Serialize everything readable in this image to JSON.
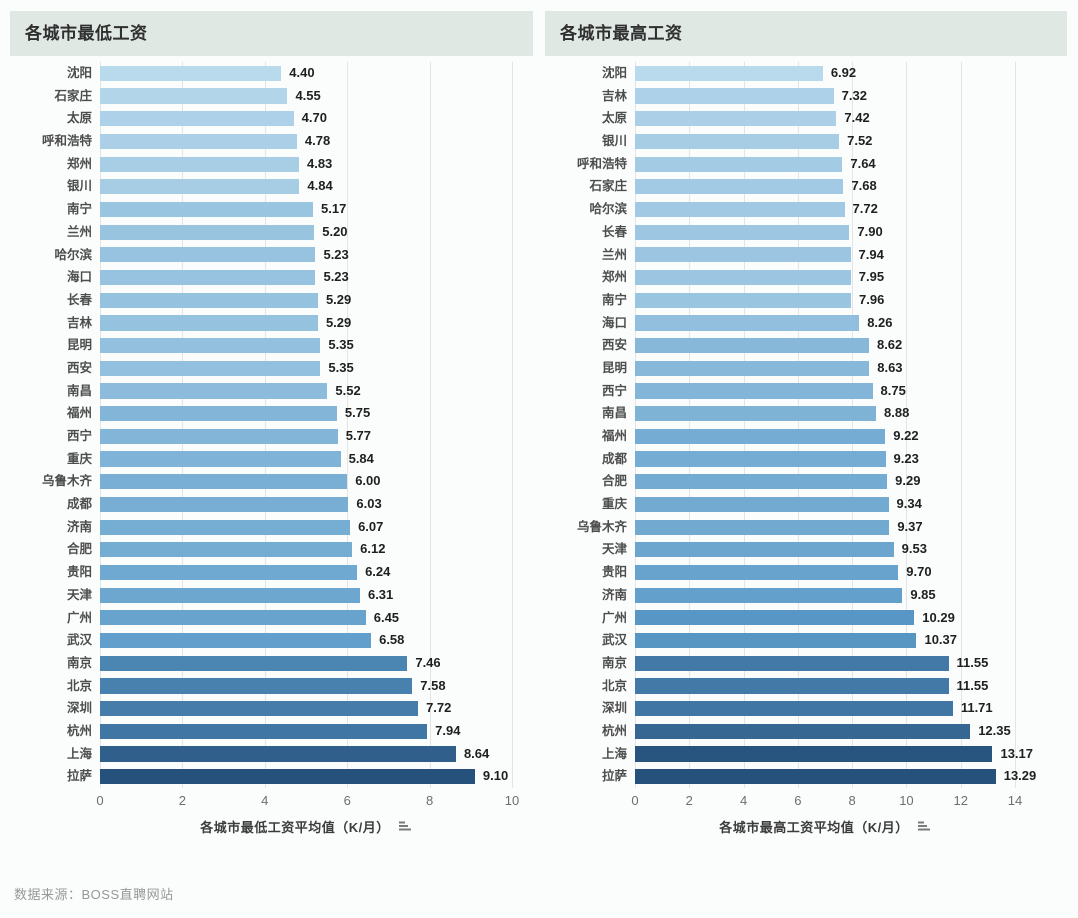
{
  "chart_data": [
    {
      "type": "bar",
      "orientation": "horizontal",
      "title": "各城市最低工资",
      "xlabel": "各城市最低工资平均值（K/月）",
      "xlim": [
        0,
        10
      ],
      "xticks": [
        0,
        2,
        4,
        6,
        8,
        10
      ],
      "grid": true,
      "value_format": "2dp",
      "categories": [
        "沈阳",
        "石家庄",
        "太原",
        "呼和浩特",
        "郑州",
        "银川",
        "南宁",
        "兰州",
        "哈尔滨",
        "海口",
        "长春",
        "吉林",
        "昆明",
        "西安",
        "南昌",
        "福州",
        "西宁",
        "重庆",
        "乌鲁木齐",
        "成都",
        "济南",
        "合肥",
        "贵阳",
        "天津",
        "广州",
        "武汉",
        "南京",
        "北京",
        "深圳",
        "杭州",
        "上海",
        "拉萨"
      ],
      "values": [
        4.4,
        4.55,
        4.7,
        4.78,
        4.83,
        4.84,
        5.17,
        5.2,
        5.23,
        5.23,
        5.29,
        5.29,
        5.35,
        5.35,
        5.52,
        5.75,
        5.77,
        5.84,
        6.0,
        6.03,
        6.07,
        6.12,
        6.24,
        6.31,
        6.45,
        6.58,
        7.46,
        7.58,
        7.72,
        7.94,
        8.64,
        9.1
      ]
    },
    {
      "type": "bar",
      "orientation": "horizontal",
      "title": "各城市最高工资",
      "xlabel": "各城市最高工资平均值（K/月）",
      "xlim": [
        0,
        14
      ],
      "xticks": [
        0,
        2,
        4,
        6,
        8,
        10,
        12,
        14
      ],
      "grid": true,
      "value_format": "2dp",
      "categories": [
        "沈阳",
        "吉林",
        "太原",
        "银川",
        "呼和浩特",
        "石家庄",
        "哈尔滨",
        "长春",
        "兰州",
        "郑州",
        "南宁",
        "海口",
        "西安",
        "昆明",
        "西宁",
        "南昌",
        "福州",
        "成都",
        "合肥",
        "重庆",
        "乌鲁木齐",
        "天津",
        "贵阳",
        "济南",
        "广州",
        "武汉",
        "南京",
        "北京",
        "深圳",
        "杭州",
        "上海",
        "拉萨"
      ],
      "values": [
        6.92,
        7.32,
        7.42,
        7.52,
        7.64,
        7.68,
        7.72,
        7.9,
        7.94,
        7.95,
        7.96,
        8.26,
        8.62,
        8.63,
        8.75,
        8.88,
        9.22,
        9.23,
        9.29,
        9.34,
        9.37,
        9.53,
        9.7,
        9.85,
        10.29,
        10.37,
        11.55,
        11.55,
        11.71,
        12.35,
        13.17,
        13.29
      ]
    }
  ],
  "colors": {
    "header_bg": "#dfe8e3",
    "bar_scale_stops": [
      "#b9d9ec",
      "#5b9bc9",
      "#26517d"
    ],
    "gridline": "#e4e4e4"
  },
  "footer": {
    "source_text": "数据来源：BOSS直聘网站"
  }
}
